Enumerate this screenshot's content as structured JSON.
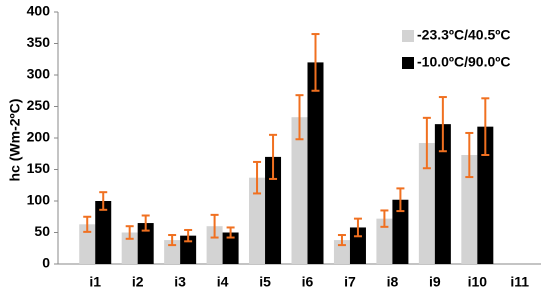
{
  "chart_data": {
    "type": "bar",
    "y_label": "hc (Wm-2ºC)",
    "categories": [
      "i1",
      "i2",
      "i3",
      "i4",
      "i5",
      "i6",
      "i7",
      "i8",
      "i9",
      "i10",
      "i11"
    ],
    "series": [
      {
        "name": "-23.3ºC/40.5ºC",
        "color": "#d3d3d3",
        "values": [
          63,
          50,
          38,
          60,
          137,
          233,
          38,
          72,
          192,
          173,
          null
        ],
        "errors": [
          12,
          10,
          8,
          18,
          25,
          35,
          8,
          13,
          40,
          35,
          null
        ]
      },
      {
        "name": "-10.0ºC/90.0ºC",
        "color": "#000000",
        "values": [
          100,
          65,
          45,
          50,
          170,
          320,
          58,
          102,
          222,
          218,
          null
        ],
        "errors": [
          14,
          12,
          9,
          8,
          35,
          45,
          14,
          18,
          43,
          45,
          null
        ]
      }
    ],
    "error_color": "#f07020",
    "ylim": [
      0,
      400
    ],
    "yticks": [
      0,
      50,
      100,
      150,
      200,
      250,
      300,
      350,
      400
    ],
    "legend": "upper right"
  }
}
